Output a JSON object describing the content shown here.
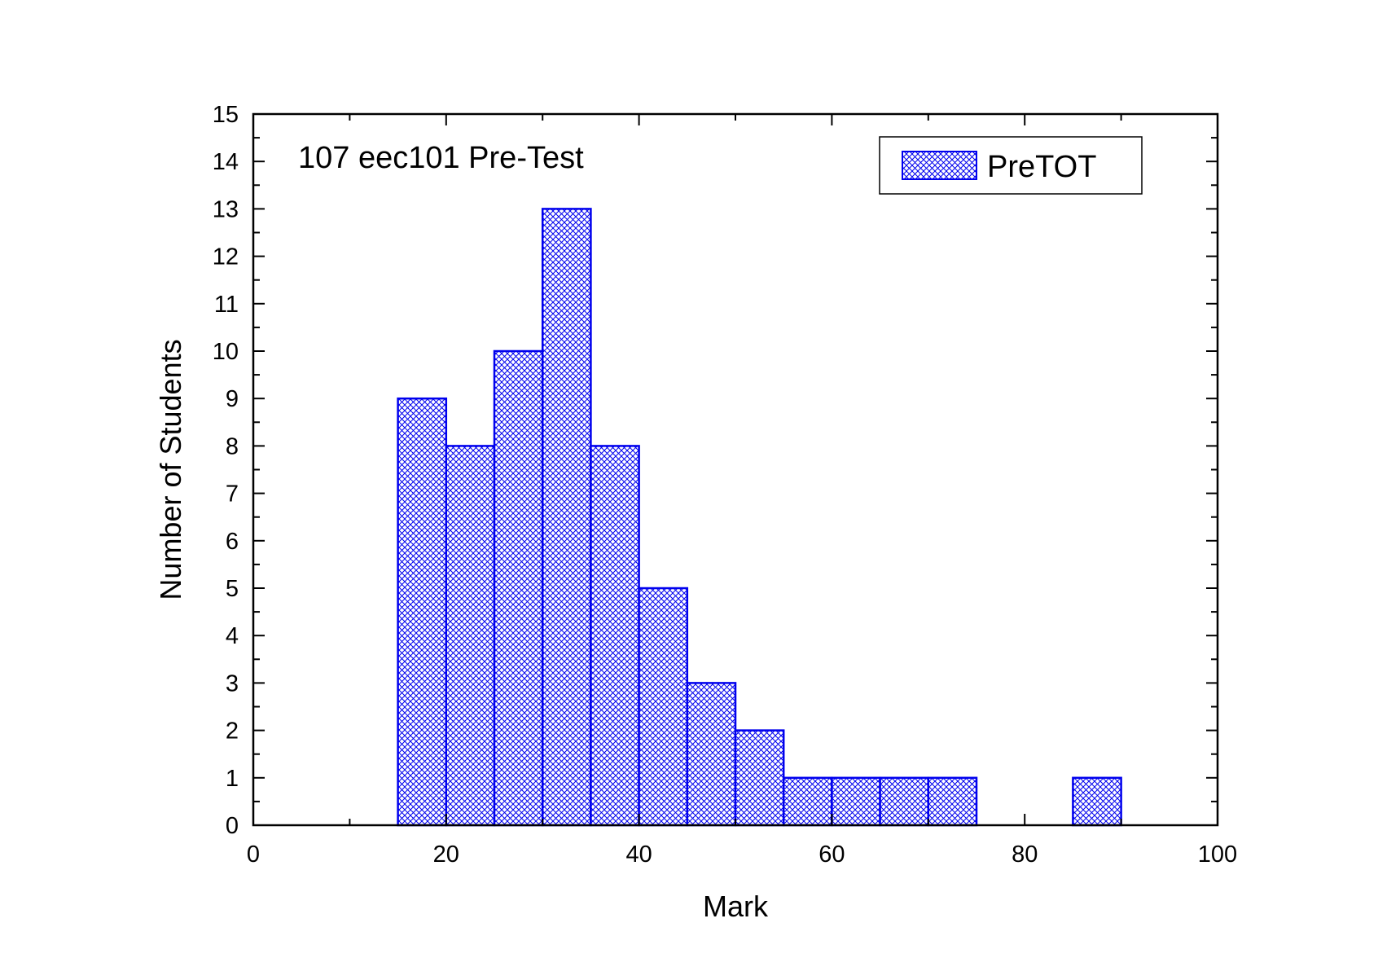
{
  "chart_data": {
    "type": "bar",
    "subtype": "histogram",
    "annotation": "107 eec101 Pre-Test",
    "xlabel": "Mark",
    "ylabel": "Number of Students",
    "xlim": [
      0,
      100
    ],
    "ylim": [
      0,
      15
    ],
    "xticks": [
      0,
      20,
      40,
      60,
      80,
      100
    ],
    "yticks": [
      0,
      1,
      2,
      3,
      4,
      5,
      6,
      7,
      8,
      9,
      10,
      11,
      12,
      13,
      14,
      15
    ],
    "legend": {
      "placement": "top-right"
    },
    "grid": false,
    "series": [
      {
        "name": "PreTOT",
        "color": "#0000ee",
        "pattern": "crosshatch",
        "bins": [
          {
            "x0": 15,
            "x1": 20,
            "count": 9
          },
          {
            "x0": 20,
            "x1": 25,
            "count": 8
          },
          {
            "x0": 25,
            "x1": 30,
            "count": 10
          },
          {
            "x0": 30,
            "x1": 35,
            "count": 13
          },
          {
            "x0": 35,
            "x1": 40,
            "count": 8
          },
          {
            "x0": 40,
            "x1": 45,
            "count": 5
          },
          {
            "x0": 45,
            "x1": 50,
            "count": 3
          },
          {
            "x0": 50,
            "x1": 55,
            "count": 2
          },
          {
            "x0": 55,
            "x1": 60,
            "count": 1
          },
          {
            "x0": 60,
            "x1": 65,
            "count": 1
          },
          {
            "x0": 65,
            "x1": 70,
            "count": 1
          },
          {
            "x0": 70,
            "x1": 75,
            "count": 1
          },
          {
            "x0": 85,
            "x1": 90,
            "count": 1
          }
        ]
      }
    ]
  }
}
